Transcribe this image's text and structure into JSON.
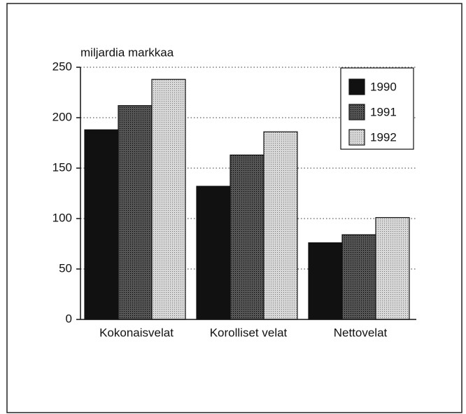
{
  "chart_data": {
    "type": "bar",
    "y_axis_label": "miljardia markkaa",
    "categories": [
      "Kokonaisvelat",
      "Korolliset velat",
      "Nettovelat"
    ],
    "series": [
      {
        "name": "1990",
        "color": "#111111",
        "values": [
          188,
          132,
          76
        ]
      },
      {
        "name": "1991",
        "color": "#555555",
        "values": [
          212,
          163,
          84
        ]
      },
      {
        "name": "1992",
        "color": "#d8d8d8",
        "values": [
          238,
          186,
          101
        ]
      }
    ],
    "ylim": [
      0,
      250
    ],
    "yticks": [
      0,
      50,
      100,
      150,
      200,
      250
    ],
    "grid": true,
    "legend": "upper right"
  }
}
